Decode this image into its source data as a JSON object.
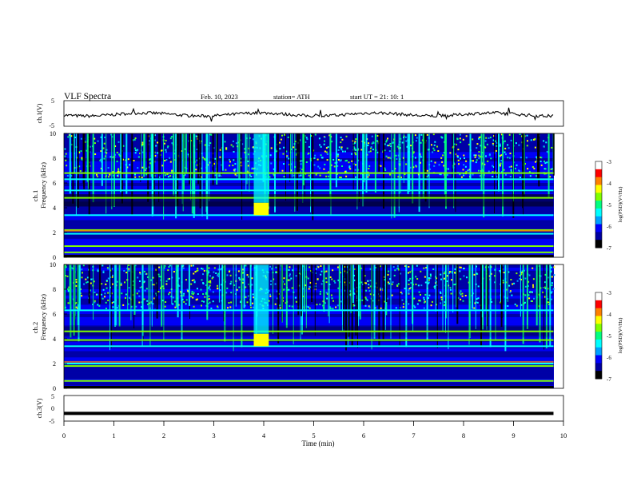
{
  "header": {
    "title": "VLF  Spectra",
    "date": "Feb. 10, 2023",
    "station": "station= ATH",
    "start": "start  UT  =   21: 10: 1"
  },
  "chart_data": [
    {
      "type": "line",
      "panel": "ch1-waveform",
      "ylabel": "ch.1(V)",
      "yticks": [
        "5",
        "-5"
      ],
      "ylim": [
        -5,
        5
      ],
      "xlim": [
        0,
        10
      ],
      "trace_level": -0.4,
      "trace_end_min": 9.8
    },
    {
      "type": "heatmap",
      "panel": "ch1-spectrogram",
      "ylabel": "Frequency (kHz)",
      "channel_label": "ch.1",
      "yticks": [
        "0",
        "2",
        "4",
        "6",
        "8",
        "10"
      ],
      "ylim": [
        0,
        10
      ],
      "xlim": [
        0,
        10
      ],
      "colorbar": {
        "label": "log(PSD)(V²/Hz)",
        "ticks": [
          "-3",
          "-4",
          "-5",
          "-6",
          "-7"
        ],
        "range": [
          -7,
          -3
        ]
      },
      "features": {
        "broadband_burst_min": [
          3.8,
          4.1
        ],
        "burst_band_khz": [
          3.4,
          4.4
        ],
        "strong_lines_khz": [
          0.4,
          0.9,
          1.9,
          2.2,
          3.4,
          4.8,
          5.4,
          6.3,
          6.8
        ]
      }
    },
    {
      "type": "heatmap",
      "panel": "ch2-spectrogram",
      "ylabel": "Frequency (kHz)",
      "channel_label": "ch.2",
      "yticks": [
        "0",
        "2",
        "4",
        "6",
        "8",
        "10"
      ],
      "ylim": [
        0,
        10
      ],
      "xlim": [
        0,
        10
      ],
      "colorbar": {
        "label": "log(PSD)(V²/Hz)",
        "ticks": [
          "-3",
          "-4",
          "-5",
          "-6",
          "-7"
        ],
        "range": [
          -7,
          -3
        ]
      },
      "features": {
        "broadband_burst_min": [
          3.8,
          4.1
        ],
        "burst_band_khz": [
          3.4,
          4.4
        ],
        "strong_lines_khz": [
          0.6,
          1.8,
          2.0,
          3.4,
          3.9,
          4.6,
          6.3
        ]
      }
    },
    {
      "type": "line",
      "panel": "ch3-waveform",
      "ylabel": "ch.3(V)",
      "yticks": [
        "5",
        "0",
        "-5"
      ],
      "ylim": [
        -5,
        5
      ],
      "xlim": [
        0,
        10
      ],
      "trace_level": -2,
      "trace_end_min": 9.8
    },
    {
      "type": "axis",
      "panel": "time-axis",
      "xlabel": "Time  (min)",
      "xticks": [
        "0",
        "1",
        "2",
        "3",
        "4",
        "5",
        "6",
        "7",
        "8",
        "9",
        "10"
      ],
      "xlim": [
        0,
        10
      ]
    }
  ],
  "colors": {
    "colormap": [
      "#000000",
      "#0000a0",
      "#0000ff",
      "#00a0ff",
      "#00ffff",
      "#00ff80",
      "#80ff00",
      "#ffff00",
      "#ff8000",
      "#ff0000",
      "#ffffff"
    ]
  }
}
